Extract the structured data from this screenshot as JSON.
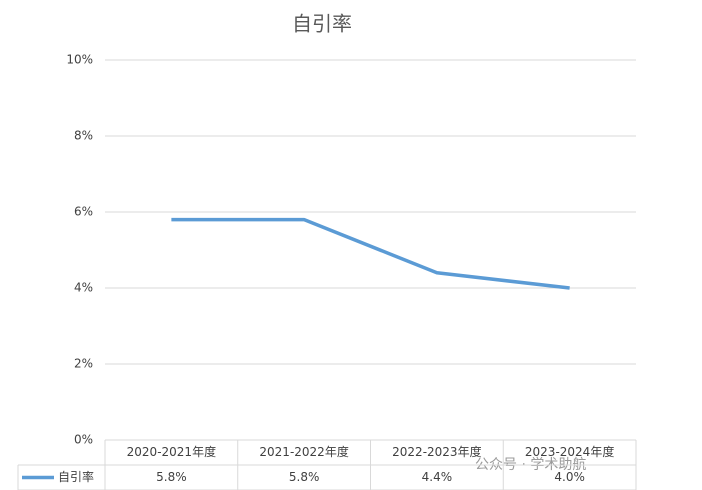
{
  "chart_data": {
    "type": "line",
    "title": "自引率",
    "categories": [
      "2020-2021年度",
      "2021-2022年度",
      "2022-2023年度",
      "2023-2024年度"
    ],
    "series": [
      {
        "name": "自引率",
        "color": "#5b9bd5",
        "values": [
          5.8,
          5.8,
          4.4,
          4.0
        ],
        "value_labels": [
          "5.8%",
          "5.8%",
          "4.4%",
          "4.0%"
        ]
      }
    ],
    "ylim": [
      0,
      10
    ],
    "yticks": [
      {
        "value": 0,
        "label": "0%"
      },
      {
        "value": 2,
        "label": "2%"
      },
      {
        "value": 4,
        "label": "4%"
      },
      {
        "value": 6,
        "label": "6%"
      },
      {
        "value": 8,
        "label": "8%"
      },
      {
        "value": 10,
        "label": "10%"
      }
    ],
    "grid": true,
    "data_table": true
  },
  "watermark": "公众号 · 学术助航"
}
